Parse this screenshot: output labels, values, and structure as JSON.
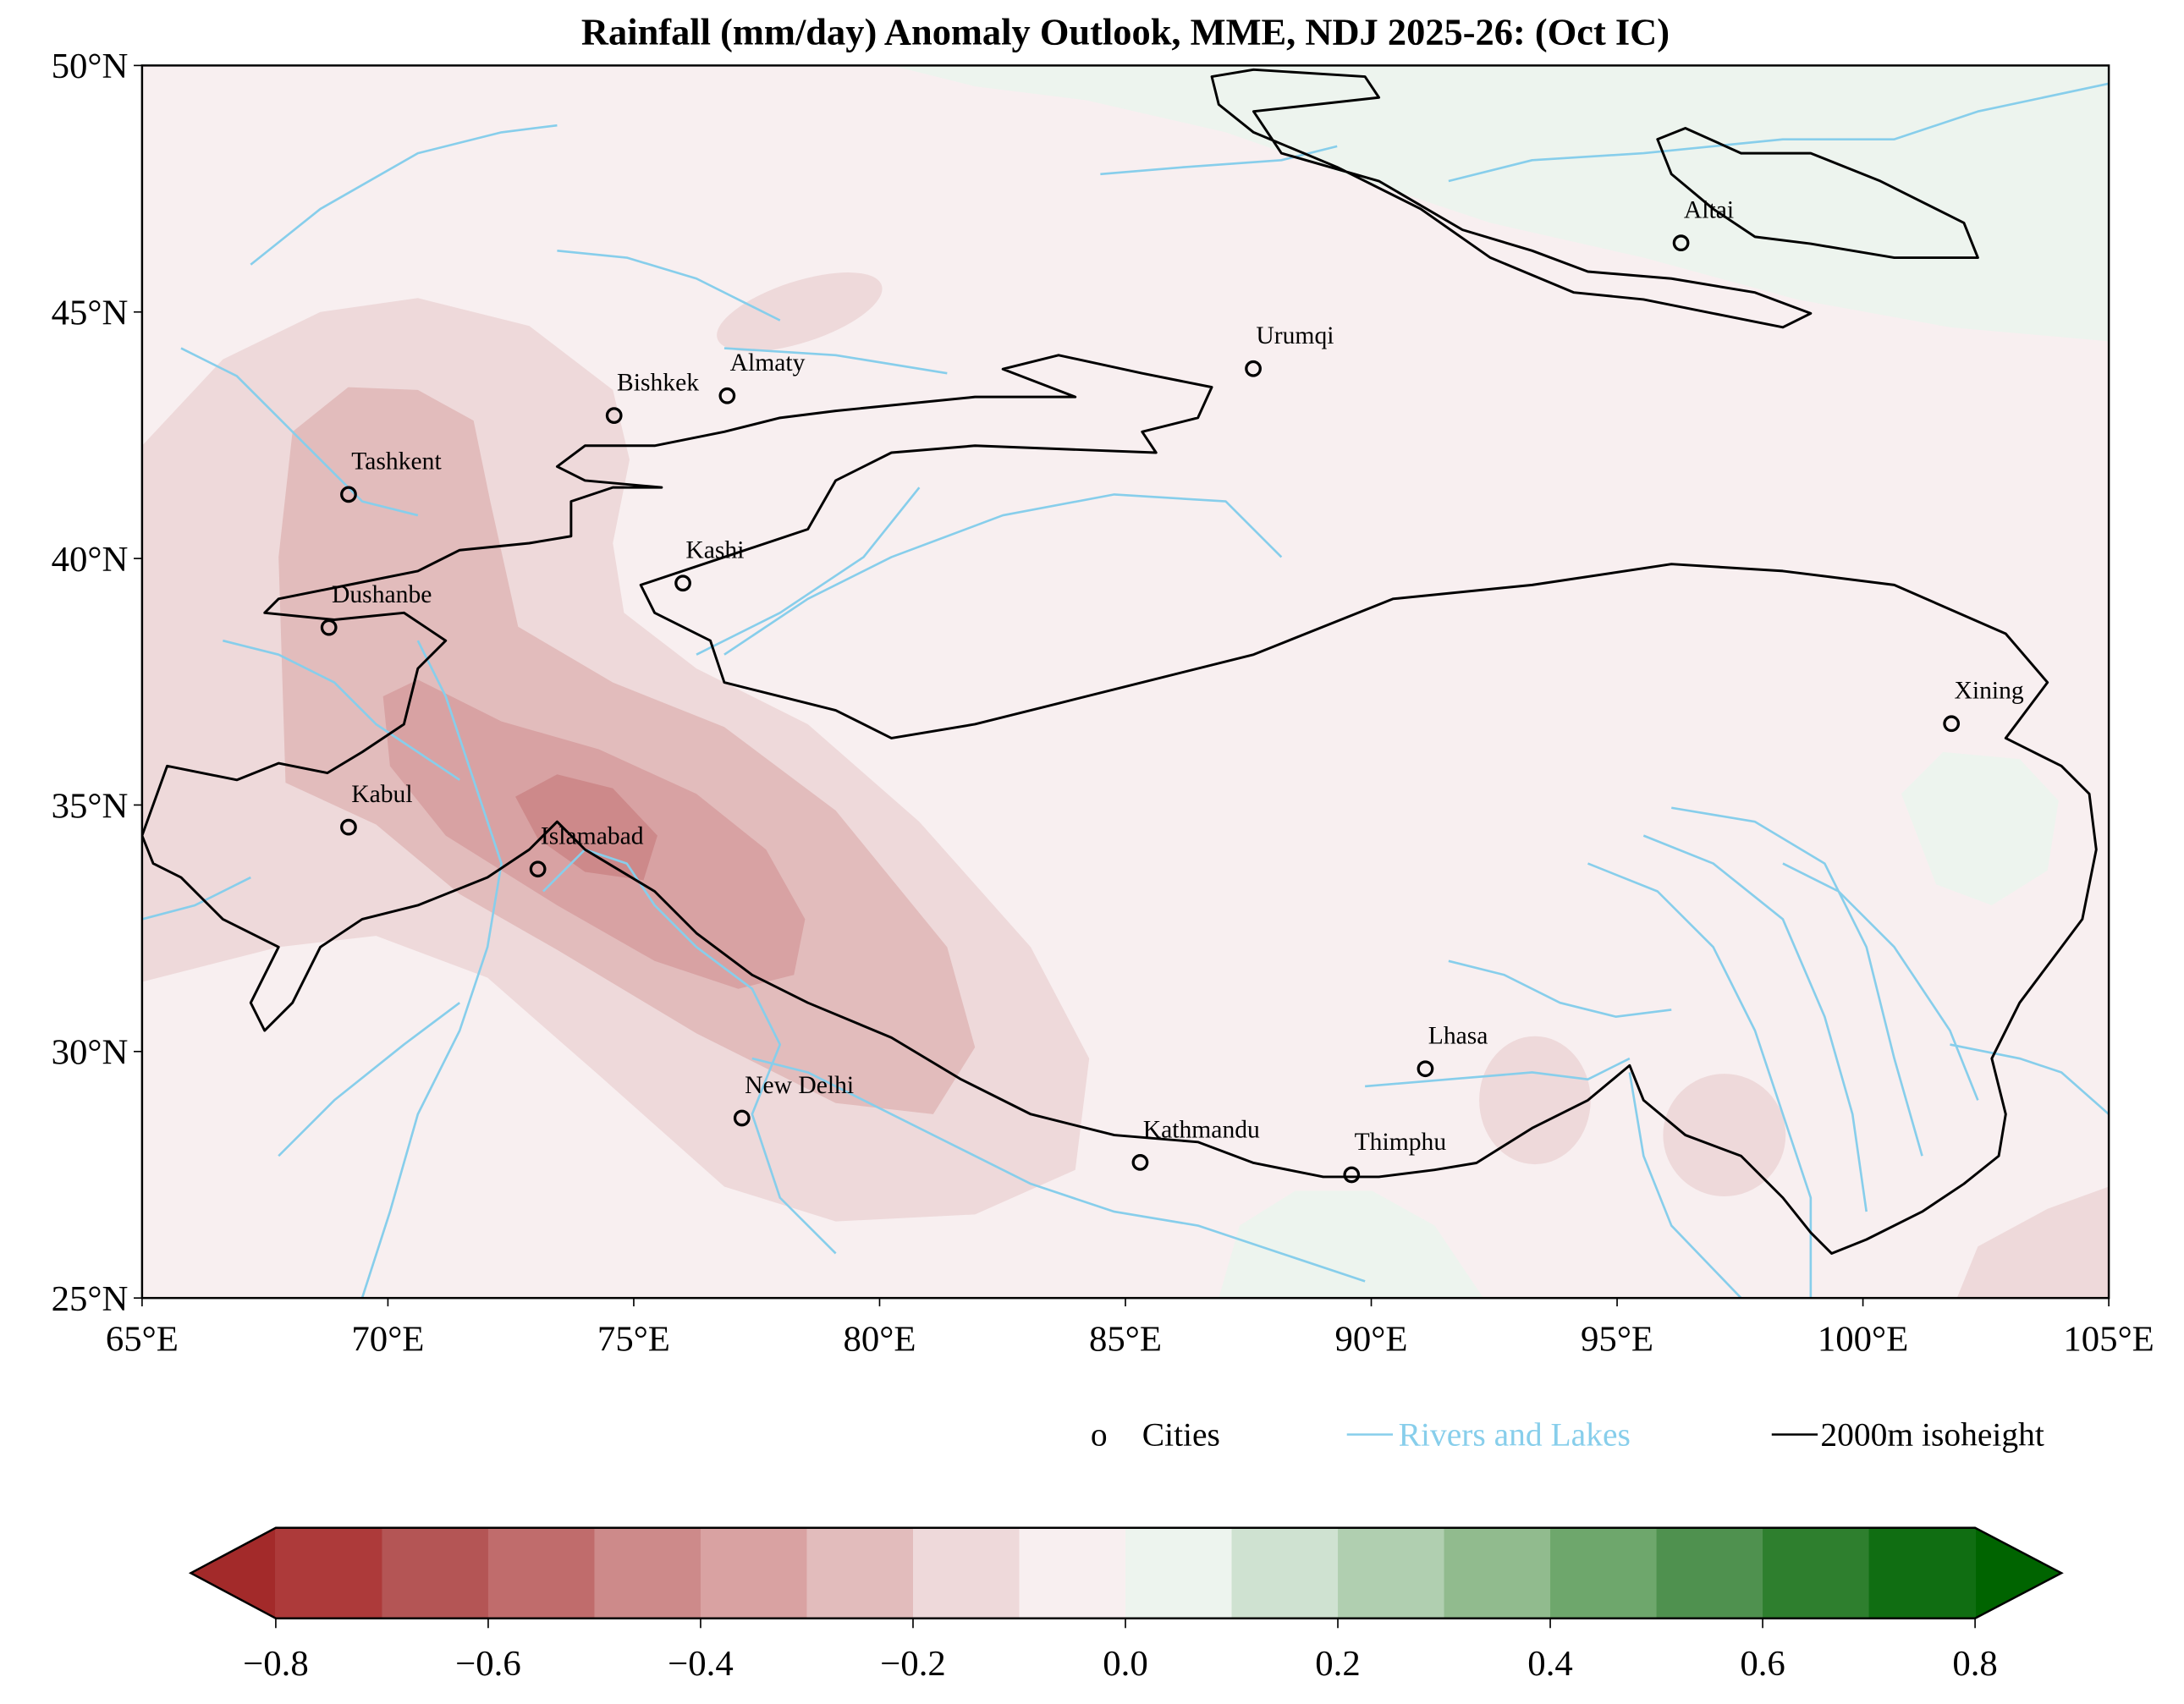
{
  "title": "Rainfall (mm/day) Anomaly Outlook, MME, NDJ  2025-26:  (Oct IC)",
  "map": {
    "lon_range": [
      65,
      105
    ],
    "lat_range": [
      25,
      50
    ],
    "lon_ticks": [
      {
        "v": 65,
        "label": "65°E"
      },
      {
        "v": 70,
        "label": "70°E"
      },
      {
        "v": 75,
        "label": "75°E"
      },
      {
        "v": 80,
        "label": "80°E"
      },
      {
        "v": 85,
        "label": "85°E"
      },
      {
        "v": 90,
        "label": "90°E"
      },
      {
        "v": 95,
        "label": "95°E"
      },
      {
        "v": 100,
        "label": "100°E"
      },
      {
        "v": 105,
        "label": "105°E"
      }
    ],
    "lat_ticks": [
      {
        "v": 25,
        "label": "25°N"
      },
      {
        "v": 30,
        "label": "30°N"
      },
      {
        "v": 35,
        "label": "35°N"
      },
      {
        "v": 40,
        "label": "40°N"
      },
      {
        "v": 45,
        "label": "45°N"
      },
      {
        "v": 50,
        "label": "50°N"
      }
    ],
    "background_color": "#f8eff0"
  },
  "cities": [
    {
      "name": "Tashkent",
      "lon": 69.2,
      "lat": 41.3
    },
    {
      "name": "Dushanbe",
      "lon": 68.8,
      "lat": 38.6
    },
    {
      "name": "Kabul",
      "lon": 69.2,
      "lat": 34.55
    },
    {
      "name": "Islamabad",
      "lon": 73.05,
      "lat": 33.7
    },
    {
      "name": "New Delhi",
      "lon": 77.2,
      "lat": 28.65
    },
    {
      "name": "Kathmandu",
      "lon": 85.3,
      "lat": 27.75
    },
    {
      "name": "Thimphu",
      "lon": 89.6,
      "lat": 27.5
    },
    {
      "name": "Lhasa",
      "lon": 91.1,
      "lat": 29.65
    },
    {
      "name": "Xining",
      "lon": 101.8,
      "lat": 36.65
    },
    {
      "name": "Urumqi",
      "lon": 87.6,
      "lat": 43.85
    },
    {
      "name": "Almaty",
      "lon": 76.9,
      "lat": 43.3
    },
    {
      "name": "Bishkek",
      "lon": 74.6,
      "lat": 42.9
    },
    {
      "name": "Kashi",
      "lon": 76.0,
      "lat": 39.5
    },
    {
      "name": "Altai",
      "lon": 96.3,
      "lat": 46.4
    }
  ],
  "legend": {
    "cities_marker": "o",
    "cities_label": "Cities",
    "rivers_label": "Rivers and Lakes",
    "iso_label": "2000m isoheight",
    "river_color": "#87ceeb",
    "iso_color": "#000000"
  },
  "colorbar": {
    "min": -0.8,
    "max": 0.8,
    "step": 0.1,
    "under_color": "#a32a2a",
    "over_color": "#006400",
    "colors": [
      "#ad3a3a",
      "#b45555",
      "#c06c6c",
      "#cd8a8a",
      "#d9a2a2",
      "#e2bcbc",
      "#eed9da",
      "#f8eff0",
      "#edf4ee",
      "#cfe2d1",
      "#b0cfb0",
      "#91bb8e",
      "#6ea76c",
      "#4f914f",
      "#2e7f2e",
      "#106e12"
    ],
    "ticks": [
      {
        "v": -0.8,
        "label": "−0.8"
      },
      {
        "v": -0.6,
        "label": "−0.6"
      },
      {
        "v": -0.4,
        "label": "−0.4"
      },
      {
        "v": -0.2,
        "label": "−0.2"
      },
      {
        "v": 0.0,
        "label": "0.0"
      },
      {
        "v": 0.2,
        "label": "0.2"
      },
      {
        "v": 0.4,
        "label": "0.4"
      },
      {
        "v": 0.6,
        "label": "0.6"
      },
      {
        "v": 0.8,
        "label": "0.8"
      }
    ]
  }
}
